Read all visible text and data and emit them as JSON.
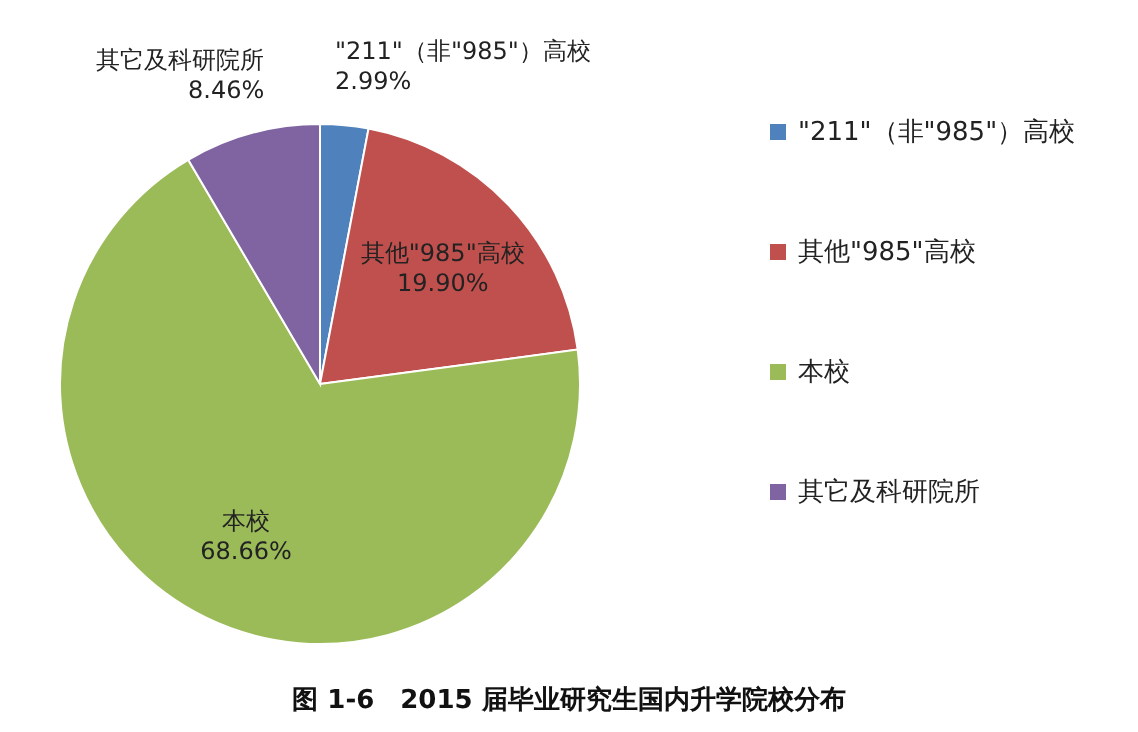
{
  "chart_data": {
    "type": "pie",
    "title": "图 1-6　2015 届毕业研究生国内升学院校分布",
    "categories": [
      "\"211\"（非\"985\"）高校",
      "其他\"985\"高校",
      "本校",
      "其它及科研院所"
    ],
    "values": [
      2.99,
      19.9,
      68.66,
      8.46
    ],
    "value_labels": [
      "2.99%",
      "19.90%",
      "68.66%",
      "8.46%"
    ],
    "colors": [
      "#4f81bd",
      "#c0504d",
      "#9bbb59",
      "#8064a2"
    ],
    "legend": "right"
  }
}
